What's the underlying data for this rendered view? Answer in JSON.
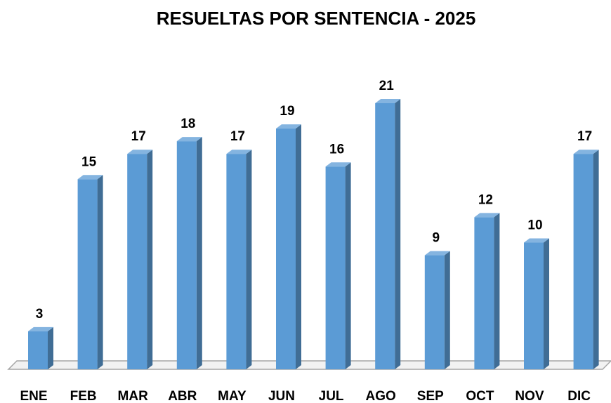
{
  "chart_data": {
    "type": "bar",
    "title": "RESUELTAS POR SENTENCIA - 2025",
    "categories": [
      "ENE",
      "FEB",
      "MAR",
      "ABR",
      "MAY",
      "JUN",
      "JUL",
      "AGO",
      "SEP",
      "OCT",
      "NOV",
      "DIC"
    ],
    "values": [
      3,
      15,
      17,
      18,
      17,
      19,
      16,
      21,
      9,
      12,
      10,
      17
    ],
    "color": "#5b9bd5"
  }
}
